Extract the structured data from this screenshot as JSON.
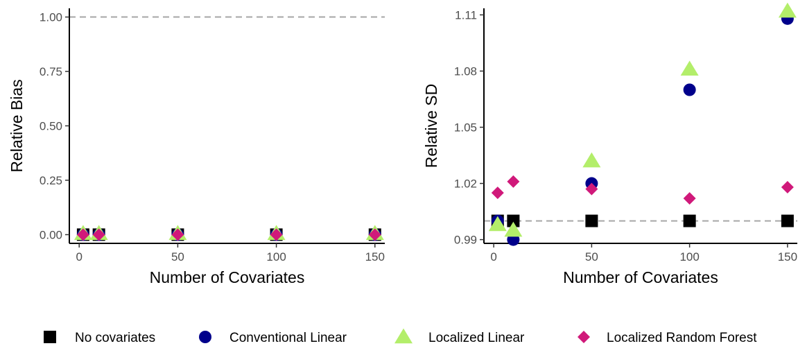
{
  "chart_data": [
    {
      "type": "scatter",
      "xlabel": "Number of Covariates",
      "ylabel": "Relative Bias",
      "xlim": [
        -5,
        155
      ],
      "ylim": [
        -0.04,
        1.04
      ],
      "xticks": [
        0,
        50,
        100,
        150
      ],
      "yticks": [
        0.0,
        0.25,
        0.5,
        0.75,
        1.0
      ],
      "ytick_labels": [
        "0.00",
        "0.25",
        "0.50",
        "0.75",
        "1.00"
      ],
      "reference_line": 1.0,
      "grid": false,
      "series": [
        {
          "name": "No covariates",
          "shape": "square",
          "color": "#000000",
          "x": [
            2,
            10,
            50,
            100,
            150
          ],
          "y": [
            0,
            0,
            0,
            0,
            0
          ]
        },
        {
          "name": "Conventional Linear",
          "shape": "circle",
          "color": "#00008b",
          "x": [
            2,
            10,
            50,
            100,
            150
          ],
          "y": [
            0,
            0,
            0,
            0,
            0
          ]
        },
        {
          "name": "Localized Linear",
          "shape": "triangle",
          "color": "#b3ee6a",
          "x": [
            2,
            10,
            50,
            100,
            150
          ],
          "y": [
            0.005,
            0.005,
            0.005,
            0.005,
            0.005
          ]
        },
        {
          "name": "Localized Random Forest",
          "shape": "diamond",
          "color": "#d0197a",
          "x": [
            2,
            10,
            50,
            100,
            150
          ],
          "y": [
            0,
            0,
            0,
            0,
            0
          ]
        }
      ]
    },
    {
      "type": "scatter",
      "xlabel": "Number of Covariates",
      "ylabel": "Relative SD",
      "xlim": [
        -5,
        155
      ],
      "ylim": [
        0.988,
        1.1135
      ],
      "xticks": [
        0,
        50,
        100,
        150
      ],
      "yticks": [
        0.99,
        1.02,
        1.05,
        1.08,
        1.11
      ],
      "ytick_labels": [
        "0.99",
        "1.02",
        "1.05",
        "1.08",
        "1.11"
      ],
      "reference_line": 1.0,
      "grid": false,
      "series": [
        {
          "name": "No covariates",
          "shape": "square",
          "color": "#000000",
          "x": [
            2,
            10,
            50,
            100,
            150
          ],
          "y": [
            1.0,
            1.0,
            1.0,
            1.0,
            1.0
          ]
        },
        {
          "name": "Conventional Linear",
          "shape": "circle",
          "color": "#00008b",
          "x": [
            2,
            10,
            50,
            100,
            150
          ],
          "y": [
            1.0,
            0.99,
            1.02,
            1.07,
            1.108
          ]
        },
        {
          "name": "Localized Linear",
          "shape": "triangle",
          "color": "#b3ee6a",
          "x": [
            2,
            10,
            50,
            100,
            150
          ],
          "y": [
            0.998,
            0.995,
            1.032,
            1.081,
            1.112
          ]
        },
        {
          "name": "Localized Random Forest",
          "shape": "diamond",
          "color": "#d0197a",
          "x": [
            2,
            10,
            50,
            100,
            150
          ],
          "y": [
            1.015,
            1.021,
            1.017,
            1.012,
            1.018
          ]
        }
      ]
    }
  ],
  "legend": {
    "position": "bottom",
    "items": [
      {
        "label": "No covariates",
        "shape": "square",
        "color": "#000000"
      },
      {
        "label": "Conventional Linear",
        "shape": "circle",
        "color": "#00008b"
      },
      {
        "label": "Localized Linear",
        "shape": "triangle",
        "color": "#b3ee6a"
      },
      {
        "label": "Localized Random Forest",
        "shape": "diamond",
        "color": "#d0197a"
      }
    ]
  }
}
